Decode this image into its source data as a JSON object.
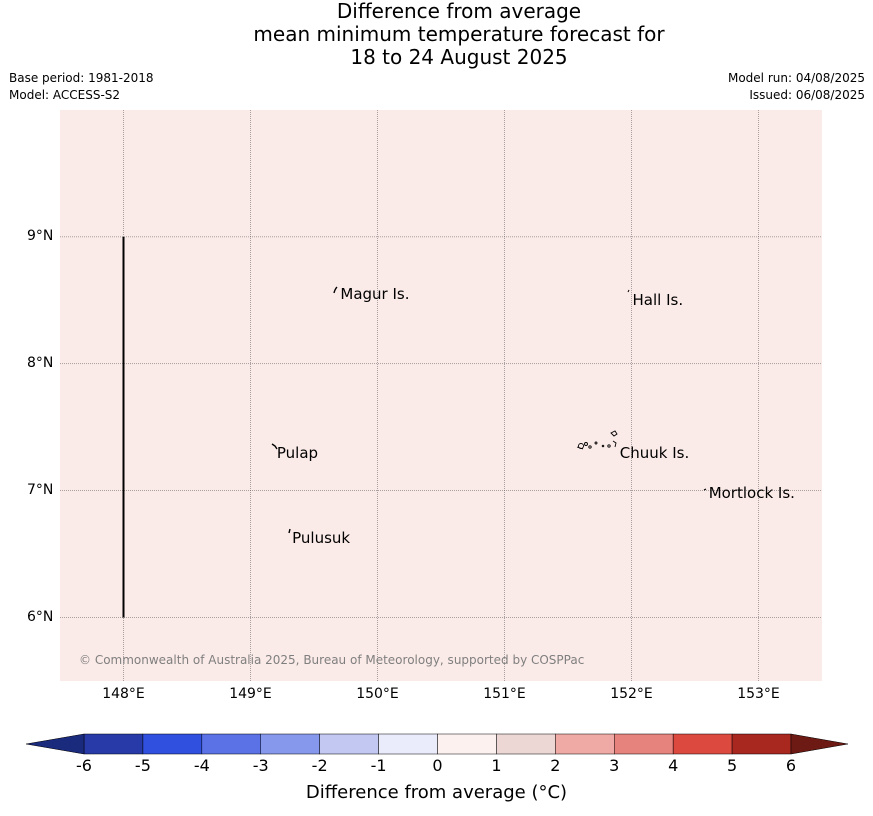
{
  "title": {
    "line1": "Difference from average",
    "line2": "mean minimum temperature forecast for",
    "line3": "18 to 24 August 2025"
  },
  "meta": {
    "base_period": "Base period: 1981-2018",
    "model": "Model: ACCESS-S2",
    "model_run": "Model run: 04/08/2025",
    "issued": "Issued: 06/08/2025"
  },
  "map": {
    "background_color": "#fbebe8",
    "anomaly_value_c": 0.5,
    "lon_range": [
      147.5,
      153.5
    ],
    "lat_range": [
      5.5,
      10.0
    ],
    "grid": true,
    "lon_ticks": [
      "148°E",
      "149°E",
      "150°E",
      "151°E",
      "152°E",
      "153°E"
    ],
    "lat_ticks": [
      "9°N",
      "8°N",
      "7°N",
      "6°N"
    ],
    "places": [
      {
        "name": "Magur Is.",
        "lon": 149.7,
        "lat": 8.55
      },
      {
        "name": "Hall Is.",
        "lon": 152.0,
        "lat": 8.5
      },
      {
        "name": "Pulap",
        "lon": 149.2,
        "lat": 7.3
      },
      {
        "name": "Chuuk Is.",
        "lon": 151.9,
        "lat": 7.3
      },
      {
        "name": "Mortlock Is.",
        "lon": 152.6,
        "lat": 6.98
      },
      {
        "name": "Pulusuk",
        "lon": 149.32,
        "lat": 6.63
      }
    ],
    "boundary_line": {
      "lon": 148.0,
      "lat_from": 6.0,
      "lat_to": 9.0
    },
    "copyright": "© Commonwealth of Australia 2025, Bureau of Meteorology, supported by COSPPac"
  },
  "colorbar": {
    "ticks": [
      "-6",
      "-5",
      "-4",
      "-3",
      "-2",
      "-1",
      "0",
      "1",
      "2",
      "3",
      "4",
      "5",
      "6"
    ],
    "colors": [
      "#273aa8",
      "#3050e0",
      "#5a72e6",
      "#8598ec",
      "#c2c8f2",
      "#eaecfb",
      "#fdf1ef",
      "#ecd7d5",
      "#efaaa6",
      "#e7837d",
      "#dc4a3f",
      "#a8271f"
    ],
    "under_color": "#1a2a7c",
    "over_color": "#6e1a14",
    "label": "Difference from average (°C)"
  }
}
